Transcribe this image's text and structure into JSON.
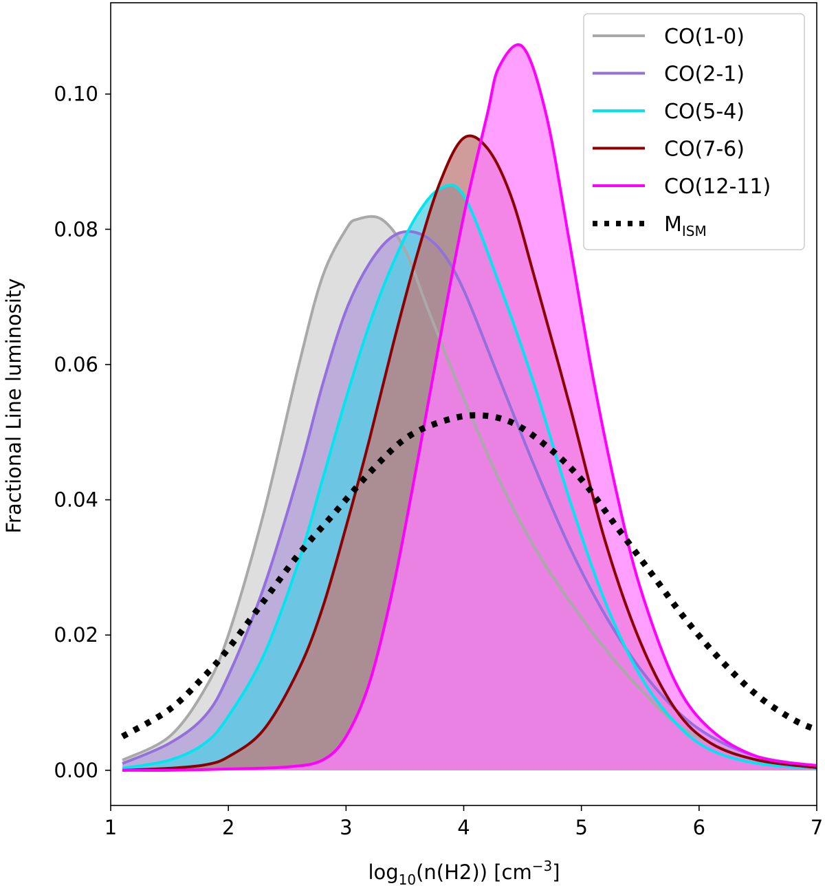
{
  "chart_data": {
    "type": "area",
    "xlabel": {
      "base": "log",
      "sub": "10",
      "mid": "(n(H2)) [cm",
      "sup": "−3",
      "end": "]"
    },
    "ylabel": "Fractional Line luminosity",
    "xlim": [
      1,
      7
    ],
    "ylim": [
      -0.0052,
      0.1135
    ],
    "x_ticks": [
      1,
      2,
      3,
      4,
      5,
      6,
      7
    ],
    "x_tick_labels": [
      "1",
      "2",
      "3",
      "4",
      "5",
      "6",
      "7"
    ],
    "y_ticks": [
      0.0,
      0.02,
      0.04,
      0.06,
      0.08,
      0.1
    ],
    "y_tick_labels": [
      "0.00",
      "0.02",
      "0.04",
      "0.06",
      "0.08",
      "0.10"
    ],
    "legend_position": "top-right",
    "series": [
      {
        "name": "CO(1-0)",
        "color": "#a9a9a9",
        "fill": "#d3d3d3",
        "x": [
          1.1,
          1.5,
          1.8,
          2.0,
          2.3,
          2.6,
          2.8,
          3.0,
          3.1,
          3.3,
          3.5,
          3.7,
          4.0,
          4.3,
          4.6,
          4.9,
          5.2,
          5.5,
          5.8,
          6.1,
          6.5,
          7.0
        ],
        "y": [
          0.0015,
          0.005,
          0.012,
          0.02,
          0.038,
          0.06,
          0.073,
          0.08,
          0.0815,
          0.0815,
          0.077,
          0.068,
          0.055,
          0.043,
          0.033,
          0.025,
          0.018,
          0.012,
          0.007,
          0.004,
          0.0015,
          0.0005
        ]
      },
      {
        "name": "CO(2-1)",
        "color": "#9370db",
        "fill": "#b19cd9",
        "x": [
          1.1,
          1.5,
          1.8,
          2.0,
          2.3,
          2.6,
          2.8,
          3.0,
          3.2,
          3.4,
          3.6,
          3.8,
          4.0,
          4.3,
          4.6,
          4.9,
          5.2,
          5.5,
          5.8,
          6.1,
          6.5,
          7.0
        ],
        "y": [
          0.001,
          0.004,
          0.008,
          0.014,
          0.027,
          0.044,
          0.057,
          0.068,
          0.075,
          0.079,
          0.0795,
          0.077,
          0.071,
          0.058,
          0.045,
          0.033,
          0.023,
          0.015,
          0.009,
          0.005,
          0.002,
          0.0006
        ]
      },
      {
        "name": "CO(5-4)",
        "color": "#00e5ee",
        "fill": "#52cfe6",
        "x": [
          1.1,
          1.5,
          1.8,
          2.0,
          2.3,
          2.6,
          2.8,
          3.0,
          3.2,
          3.4,
          3.6,
          3.8,
          4.0,
          4.3,
          4.6,
          4.9,
          5.2,
          5.5,
          5.8,
          6.1,
          6.5,
          7.0
        ],
        "y": [
          0.0003,
          0.0015,
          0.004,
          0.008,
          0.017,
          0.031,
          0.043,
          0.055,
          0.066,
          0.075,
          0.082,
          0.086,
          0.085,
          0.072,
          0.057,
          0.04,
          0.025,
          0.014,
          0.007,
          0.003,
          0.001,
          0.0003
        ]
      },
      {
        "name": "CO(7-6)",
        "color": "#8b0000",
        "fill": "#c07a7a",
        "x": [
          1.1,
          1.5,
          1.8,
          2.0,
          2.3,
          2.6,
          2.8,
          3.0,
          3.2,
          3.4,
          3.6,
          3.8,
          4.0,
          4.2,
          4.4,
          4.6,
          4.9,
          5.2,
          5.5,
          5.8,
          6.1,
          6.5,
          7.0
        ],
        "y": [
          0.0,
          0.0003,
          0.0008,
          0.002,
          0.006,
          0.015,
          0.024,
          0.036,
          0.049,
          0.063,
          0.076,
          0.087,
          0.0935,
          0.092,
          0.085,
          0.073,
          0.054,
          0.034,
          0.019,
          0.009,
          0.004,
          0.0015,
          0.0004
        ]
      },
      {
        "name": "CO(12-11)",
        "color": "#ff00ff",
        "fill": "#ff7fff",
        "x": [
          1.1,
          1.5,
          2.0,
          2.5,
          2.8,
          3.0,
          3.2,
          3.4,
          3.6,
          3.8,
          4.0,
          4.2,
          4.3,
          4.5,
          4.7,
          4.9,
          5.1,
          5.3,
          5.5,
          5.8,
          6.1,
          6.5,
          7.0
        ],
        "y": [
          0.0,
          0.0,
          0.0002,
          0.0005,
          0.0015,
          0.005,
          0.013,
          0.027,
          0.045,
          0.064,
          0.082,
          0.097,
          0.104,
          0.107,
          0.097,
          0.078,
          0.058,
          0.041,
          0.027,
          0.013,
          0.006,
          0.002,
          0.0007
        ]
      }
    ],
    "reference": {
      "name": "M",
      "name_sub": "ISM",
      "style": "dotted",
      "color": "#000000",
      "x": [
        1.1,
        1.5,
        1.8,
        2.0,
        2.3,
        2.6,
        2.9,
        3.2,
        3.5,
        3.8,
        4.1,
        4.4,
        4.7,
        5.0,
        5.3,
        5.6,
        5.9,
        6.2,
        6.5,
        6.8,
        7.0
      ],
      "y": [
        0.005,
        0.009,
        0.014,
        0.018,
        0.025,
        0.032,
        0.038,
        0.044,
        0.049,
        0.0515,
        0.0525,
        0.0515,
        0.048,
        0.043,
        0.036,
        0.029,
        0.022,
        0.016,
        0.011,
        0.0075,
        0.006
      ]
    }
  }
}
